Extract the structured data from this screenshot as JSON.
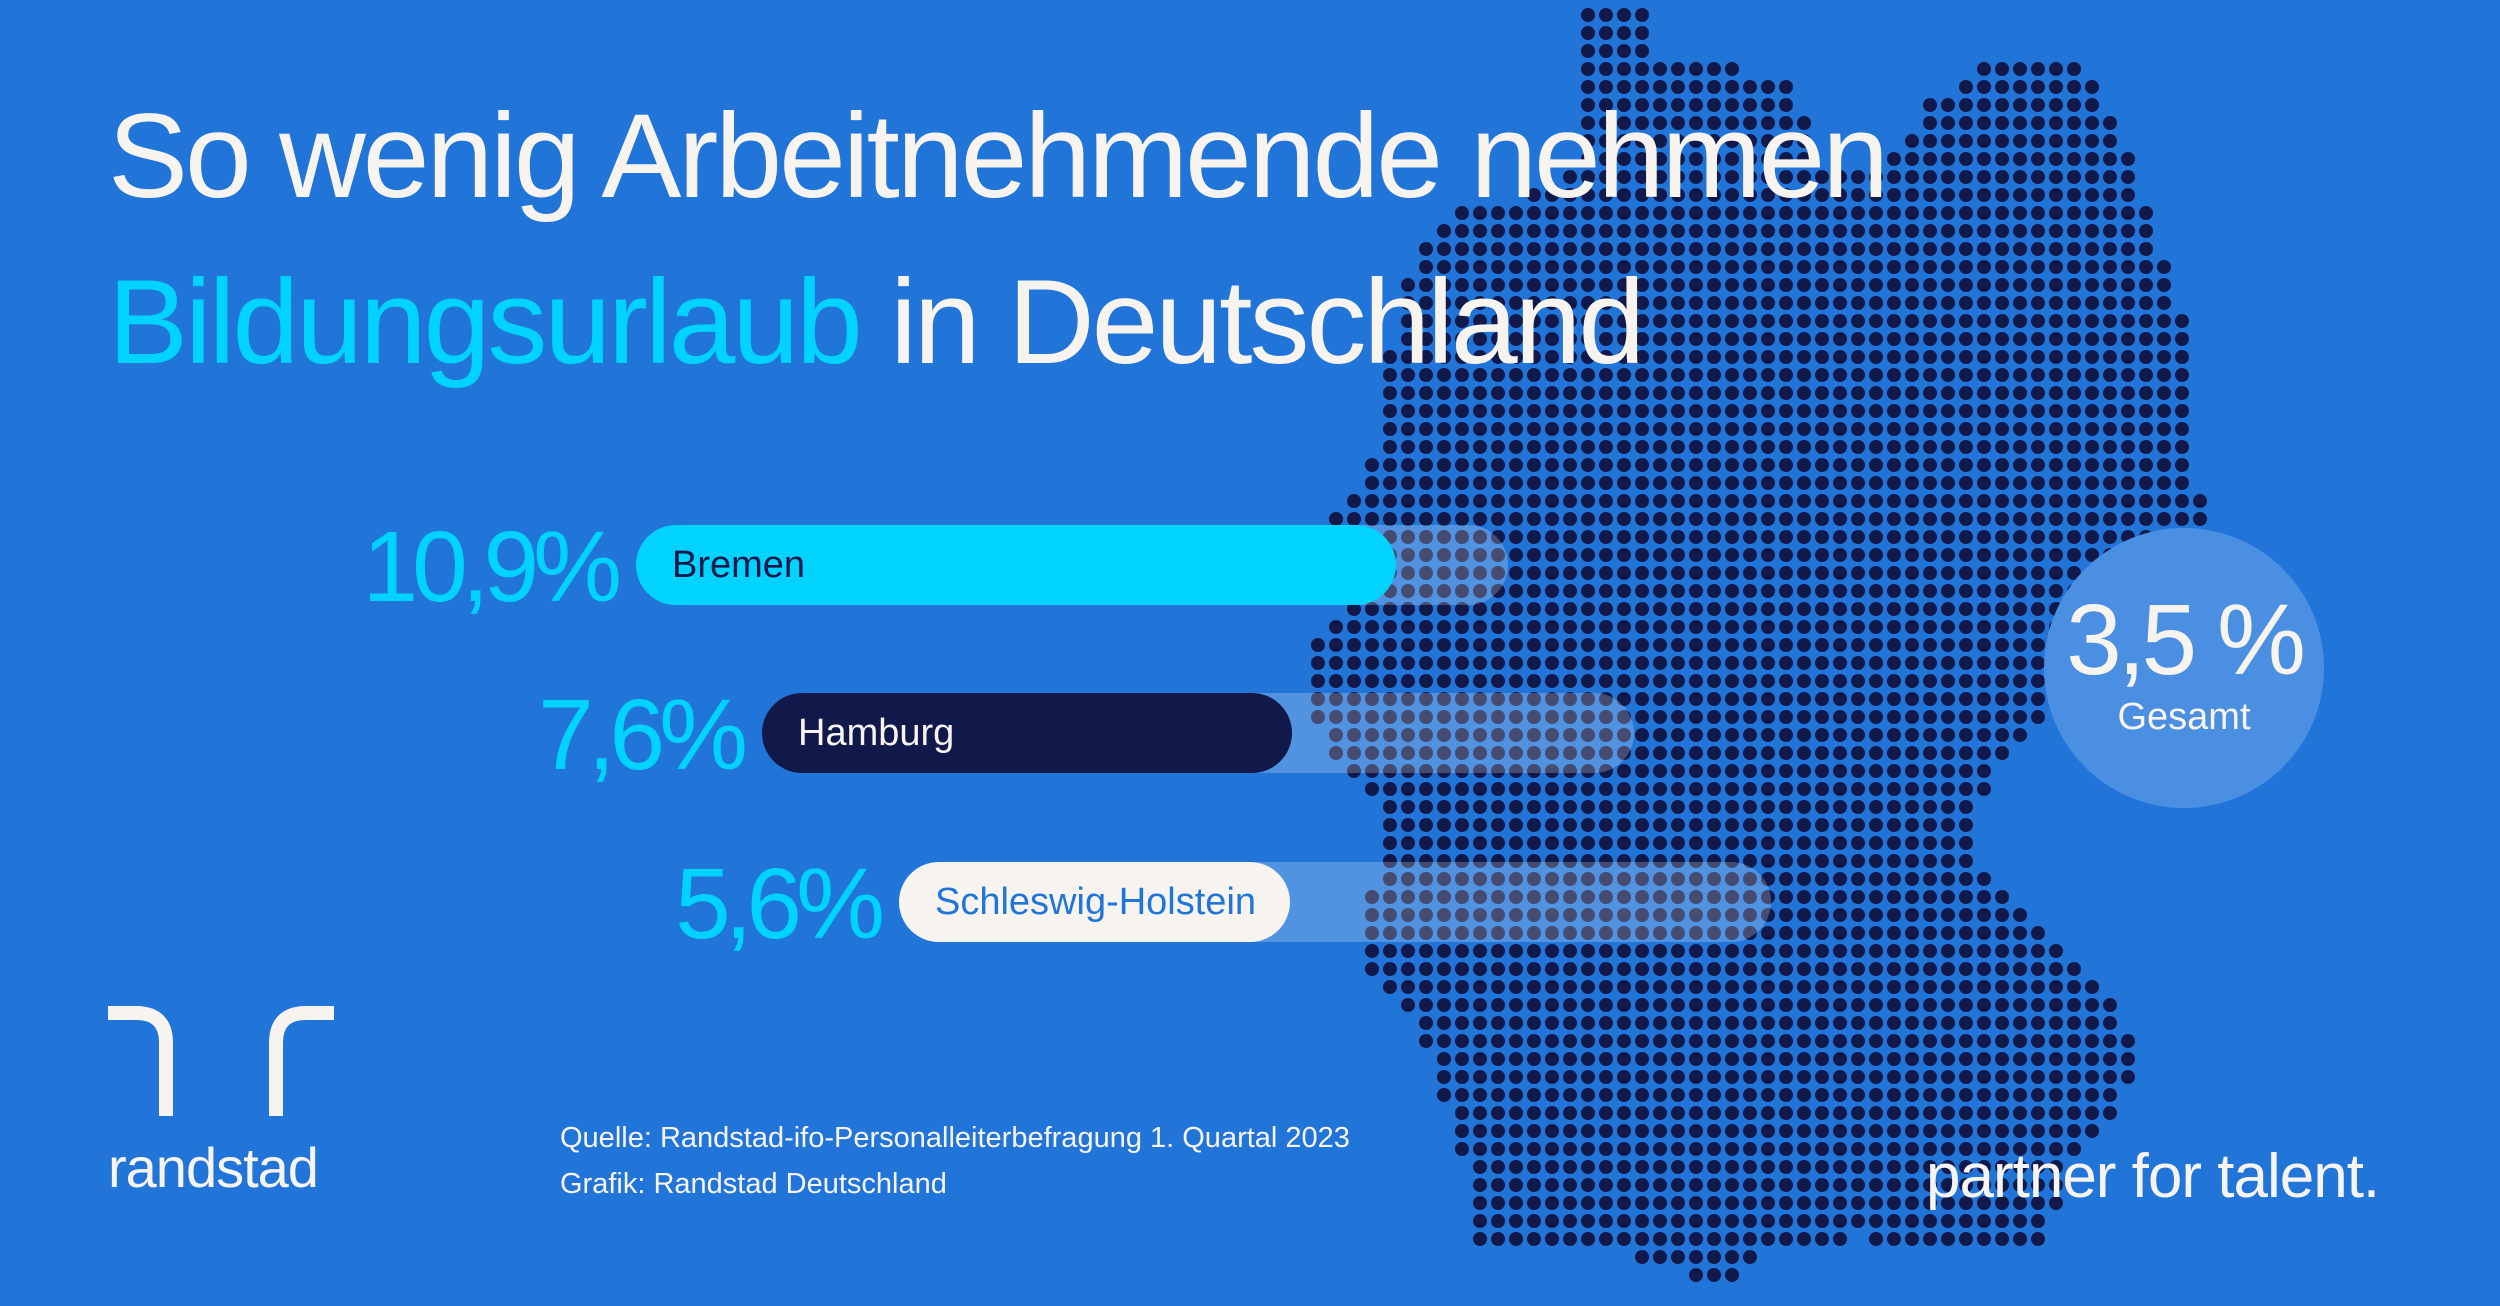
{
  "title": {
    "line1": "So wenig Arbeitnehmende nehmen",
    "highlight": "Bildungsurlaub",
    "rest": " in Deutschland"
  },
  "chart_data": {
    "type": "bar",
    "orientation": "horizontal",
    "categories": [
      "Bremen",
      "Hamburg",
      "Schleswig-Holstein"
    ],
    "values": [
      10.9,
      7.6,
      5.6
    ],
    "value_labels": [
      "10,9%",
      "7,6%",
      "5,6%"
    ],
    "unit": "%",
    "overall": {
      "value": 3.5,
      "label": "3,5 %",
      "caption": "Gesamt"
    },
    "bar_colors": [
      "#00d3ff",
      "#11194a",
      "#f7f4ef"
    ],
    "label_colors": [
      "#11194a",
      "#f7f4ef",
      "#2175d9"
    ]
  },
  "source": {
    "line1": "Quelle: Randstad-ifo-Personalleiterbefragung 1. Quartal 2023",
    "line2": "Grafik: Randstad Deutschland"
  },
  "brand": {
    "name": "randstad",
    "tagline": "partner for talent."
  },
  "colors": {
    "background": "#2175d9",
    "accent": "#00d3ff",
    "dark": "#11194a",
    "light": "#f7f4ef"
  }
}
